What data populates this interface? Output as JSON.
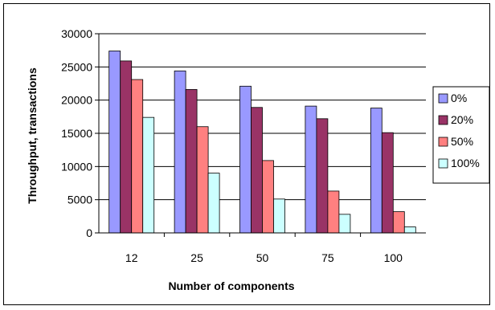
{
  "chart_data": {
    "type": "bar",
    "title": "",
    "xlabel": "Number of components",
    "ylabel": "Throughput, transactions",
    "ylim": [
      0,
      30000
    ],
    "ytick_step": 5000,
    "yticks": [
      "0",
      "5000",
      "10000",
      "15000",
      "20000",
      "25000",
      "30000"
    ],
    "grid": true,
    "legend": "right",
    "categories": [
      "12",
      "25",
      "50",
      "75",
      "100"
    ],
    "series": [
      {
        "name": "0%",
        "color": "#9999ff",
        "values": [
          27400,
          24400,
          22100,
          19100,
          18800
        ]
      },
      {
        "name": "20%",
        "color": "#993366",
        "values": [
          25900,
          21600,
          18900,
          17200,
          15100
        ]
      },
      {
        "name": "50%",
        "color": "#ff8080",
        "values": [
          23100,
          16000,
          10900,
          6300,
          3200
        ]
      },
      {
        "name": "100%",
        "color": "#ccffff",
        "values": [
          17400,
          9000,
          5100,
          2800,
          900
        ]
      }
    ]
  }
}
